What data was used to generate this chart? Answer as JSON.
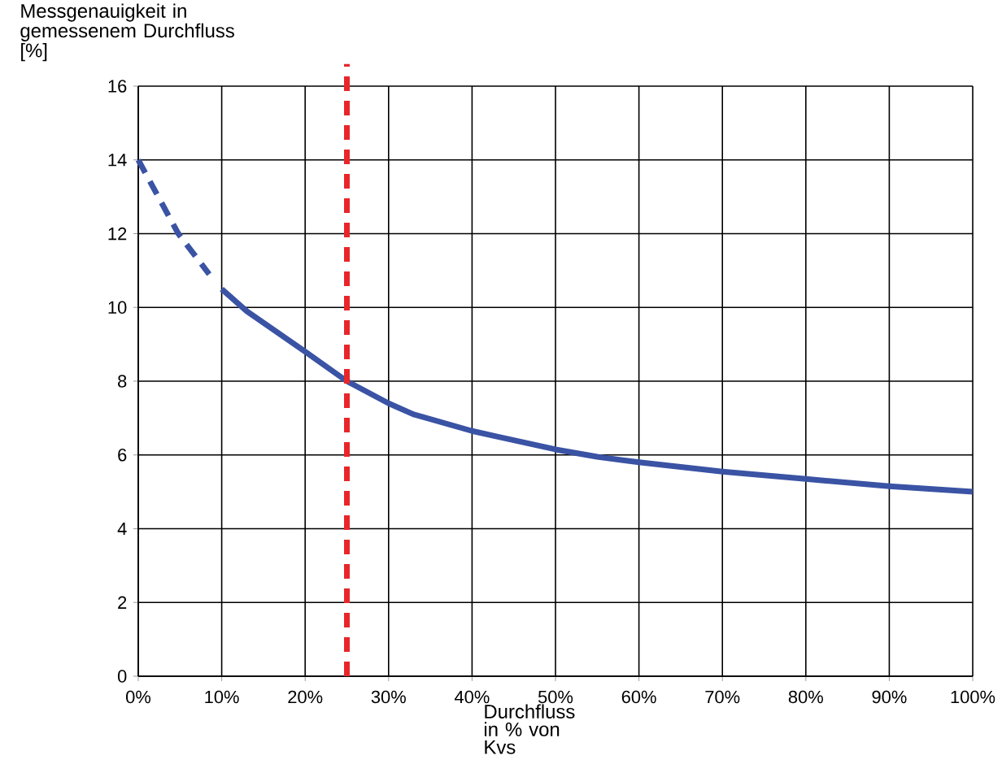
{
  "chart_data": {
    "type": "line",
    "ylabel": "Messgenauigkeit in gemessenem Durchfluss [%]",
    "xlabel": "Durchfluss in % von Kvs",
    "series": [
      {
        "color": "#3a53a4",
        "line_style": "dashed",
        "x": [
          0,
          4.8,
          8.5
        ],
        "values": [
          14,
          12,
          10.9
        ]
      },
      {
        "color": "#3a53a4",
        "line_style": "solid",
        "x": [
          10,
          13,
          20,
          25,
          30,
          33,
          40,
          43,
          50,
          55,
          60,
          70,
          80,
          90,
          100
        ],
        "values": [
          10.5,
          9.9,
          8.8,
          8.0,
          7.4,
          7.1,
          6.65,
          6.5,
          6.15,
          5.95,
          5.8,
          5.55,
          5.35,
          5.15,
          5.0
        ]
      }
    ],
    "ref_lines": [
      {
        "axis": "x",
        "value": 25,
        "color": "#e8262a",
        "line_style": "dashed"
      }
    ],
    "xlim": [
      0,
      100
    ],
    "ylim": [
      0,
      16
    ],
    "xticks": [
      {
        "value": 0,
        "label": "0%"
      },
      {
        "value": 10,
        "label": "10%"
      },
      {
        "value": 20,
        "label": "20%"
      },
      {
        "value": 30,
        "label": "30%"
      },
      {
        "value": 40,
        "label": "40%"
      },
      {
        "value": 50,
        "label": "50%"
      },
      {
        "value": 60,
        "label": "60%"
      },
      {
        "value": 70,
        "label": "70%"
      },
      {
        "value": 80,
        "label": "80%"
      },
      {
        "value": 90,
        "label": "90%"
      },
      {
        "value": 100,
        "label": "100%"
      }
    ],
    "yticks": [
      0,
      2,
      4,
      6,
      8,
      10,
      12,
      14,
      16
    ],
    "grid": true,
    "marker": "none"
  }
}
